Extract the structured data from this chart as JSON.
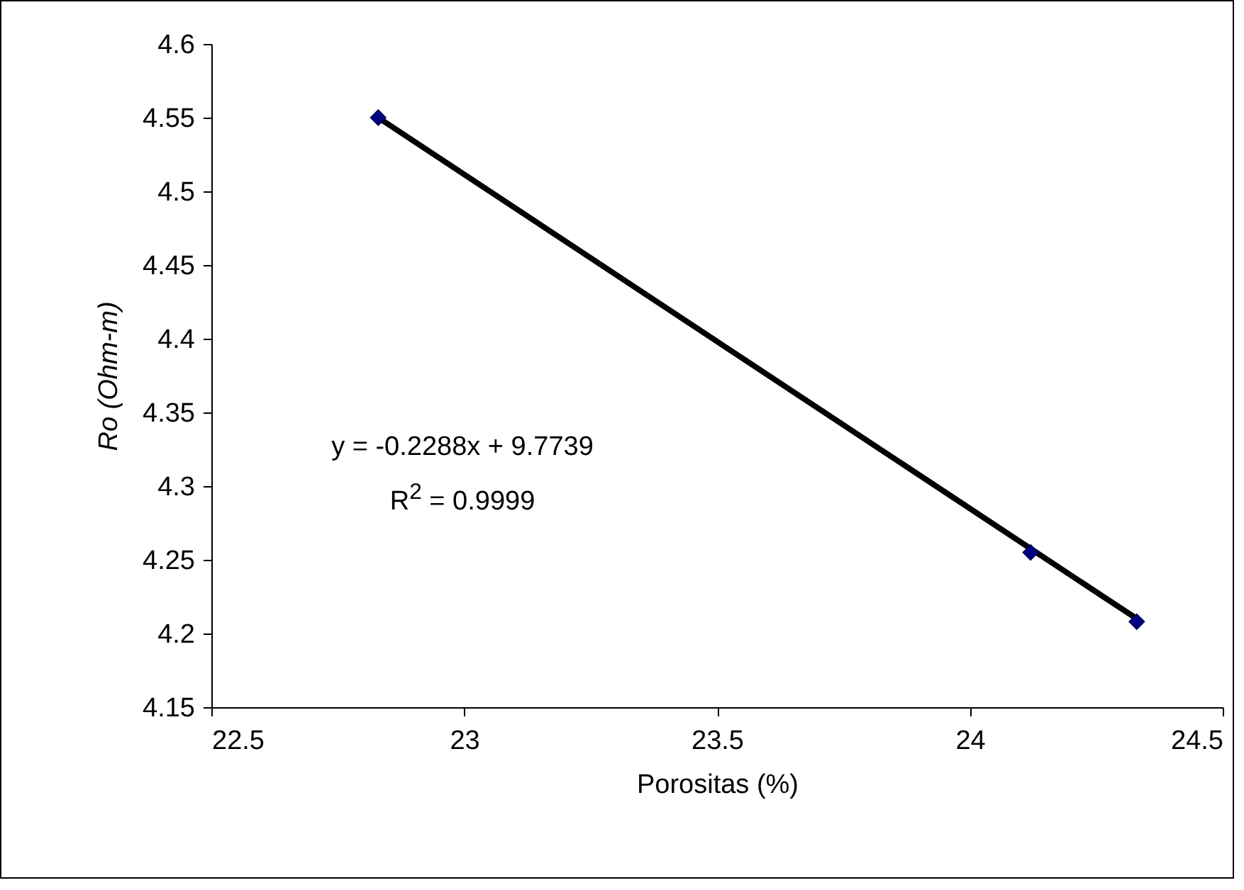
{
  "chart_data": {
    "type": "scatter",
    "xlabel": "Porositas (%)",
    "ylabel": "Ro (Ohm-m)",
    "xlim": [
      22.5,
      24.5
    ],
    "xticks": [
      22.5,
      23,
      23.5,
      24,
      24.5
    ],
    "ylim": [
      4.15,
      4.6
    ],
    "yticks": [
      4.15,
      4.2,
      4.25,
      4.3,
      4.35,
      4.4,
      4.45,
      4.5,
      4.55,
      4.6
    ],
    "grid": false,
    "marker": "diamond",
    "series": [
      {
        "type": "line",
        "marker": "none",
        "color": "#000000",
        "x": [
          22.83,
          24.33
        ],
        "values": [
          4.55,
          4.21
        ]
      },
      {
        "color": "#000080",
        "x": [
          22.83,
          24.12,
          24.33
        ],
        "values": [
          4.55,
          4.255,
          4.208
        ]
      }
    ],
    "annotations": [
      "y = -0.2288x + 9.7739",
      "R$^{2}$ = 0.9999"
    ]
  }
}
